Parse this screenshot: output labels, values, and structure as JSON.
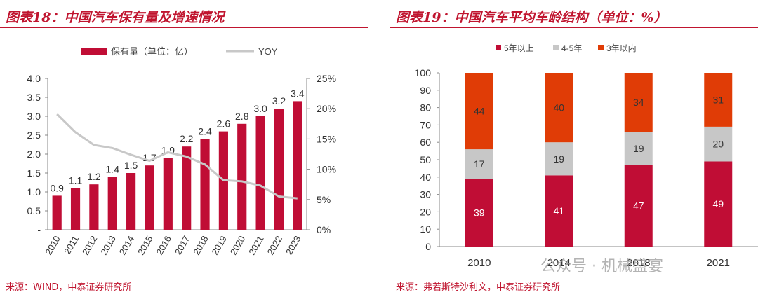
{
  "left_panel": {
    "title": "图表18：中国汽车保有量及增速情况",
    "source": "来源：WIND，中泰证券研究所"
  },
  "right_panel": {
    "title": "图表19：中国汽车平均车龄结构（单位：%）",
    "source": "来源：弗若斯特沙利文，中泰证券研究所"
  },
  "watermark": "公众号 · 机械盛宴",
  "colors": {
    "brand_red": "#c0152f",
    "bar_red": "#c00d35",
    "line_gray": "#c8c8c8",
    "stack_orange": "#e03c06",
    "stack_gray": "#c7c7c7"
  },
  "chart_data": [
    {
      "type": "bar",
      "combo_line": true,
      "categories": [
        "2010",
        "2011",
        "2012",
        "2013",
        "2014",
        "2015",
        "2016",
        "2017",
        "2018",
        "2019",
        "2020",
        "2021",
        "2022",
        "2023"
      ],
      "series": [
        {
          "name": "保有量（单位：亿）",
          "type": "bar",
          "axis": "left",
          "values": [
            0.9,
            1.1,
            1.2,
            1.4,
            1.5,
            1.7,
            1.9,
            2.2,
            2.4,
            2.6,
            2.8,
            3.0,
            3.2,
            3.4
          ],
          "labels": [
            "0.9",
            "1.1",
            "1.2",
            "1.4",
            "1.5",
            "1.7",
            "1.9",
            "2.2",
            "2.4",
            "2.6",
            "2.8",
            "3.0",
            "3.2",
            "3.4"
          ]
        },
        {
          "name": "YOY",
          "type": "line",
          "axis": "right",
          "values": [
            19.1,
            16.1,
            14.0,
            13.5,
            12.4,
            11.4,
            12.8,
            12.1,
            10.8,
            8.2,
            8.0,
            7.3,
            5.5,
            5.2
          ]
        }
      ],
      "left_ticks": [
        "-",
        "0.5",
        "1.0",
        "1.5",
        "2.0",
        "2.5",
        "3.0",
        "3.5",
        "4.0"
      ],
      "right_ticks": [
        "0%",
        "5%",
        "10%",
        "15%",
        "20%",
        "25%"
      ],
      "ylim_left": [
        0,
        4.0
      ],
      "ylim_right": [
        0,
        25
      ],
      "legend_position": "top",
      "grid": false
    },
    {
      "type": "bar",
      "stacked": true,
      "categories": [
        "2010",
        "2014",
        "2018",
        "2021"
      ],
      "series": [
        {
          "name": "5年以上",
          "values": [
            39,
            41,
            47,
            49
          ],
          "labels": [
            "39",
            "41",
            "47",
            "49"
          ]
        },
        {
          "name": "4-5年",
          "values": [
            17,
            19,
            19,
            20
          ],
          "labels": [
            "17",
            "19",
            "19",
            "20"
          ]
        },
        {
          "name": "3年以内",
          "values": [
            44,
            40,
            34,
            31
          ],
          "labels": [
            "44",
            "40",
            "34",
            "31"
          ]
        }
      ],
      "y_ticks": [
        "0",
        "10",
        "20",
        "30",
        "40",
        "50",
        "60",
        "70",
        "80",
        "90",
        "100"
      ],
      "ylim": [
        0,
        100
      ],
      "legend_position": "top",
      "grid": false
    }
  ]
}
